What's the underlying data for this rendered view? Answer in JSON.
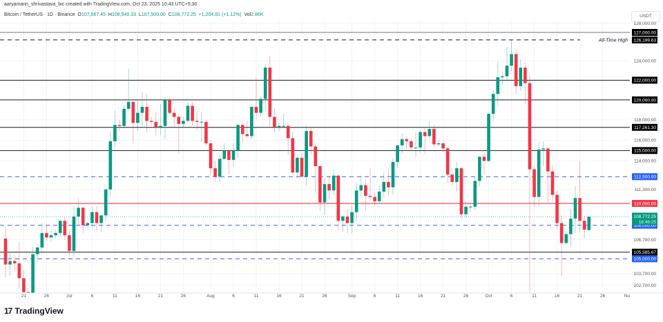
{
  "credit": "aaryamann_shrivastava_bic created with TradingView.com, Oct 23, 2025 10:43 UTC+5:30",
  "legend": {
    "symbol": "Bitcoin / TetherUS · 1D · Binance",
    "open_label": "O",
    "open": "107,567.45",
    "high_label": "H",
    "high": "108,940.33",
    "low_label": "L",
    "low": "107,500.00",
    "close_label": "C",
    "close": "108,772.25",
    "change": "+1,204.81 (+1.12%)",
    "vol_label": "Vol",
    "vol": "2.86K"
  },
  "currency": "USDT",
  "footer": {
    "brand": "TradingView",
    "logo_text": "17"
  },
  "colors": {
    "up": "#089981",
    "down": "#f23645",
    "blue_level": "#2962ff",
    "red_level": "#f23645",
    "black_level": "#131722"
  },
  "chart_data": {
    "type": "candlestick",
    "scale": "log",
    "ylim": [
      102000,
      128300
    ],
    "start_date": "2025-06-17",
    "ohlc": [
      [
        106800,
        107800,
        103400,
        104500
      ],
      [
        104500,
        105500,
        103500,
        104800
      ],
      [
        104800,
        105300,
        103900,
        104600
      ],
      [
        104600,
        106500,
        102400,
        103300
      ],
      [
        103300,
        104000,
        101000,
        102100
      ],
      [
        102100,
        102500,
        98200,
        100900
      ],
      [
        100900,
        106100,
        99700,
        105400
      ],
      [
        105400,
        106300,
        104700,
        106000
      ],
      [
        106000,
        108200,
        105500,
        107300
      ],
      [
        107300,
        108000,
        106600,
        106900
      ],
      [
        106900,
        107500,
        106500,
        107100
      ],
      [
        107100,
        107600,
        106800,
        107300
      ],
      [
        107300,
        108500,
        107000,
        108400
      ],
      [
        108400,
        108800,
        106700,
        107100
      ],
      [
        107100,
        107500,
        105300,
        105700
      ],
      [
        105700,
        109800,
        105200,
        108800
      ],
      [
        108800,
        110500,
        108100,
        109600
      ],
      [
        109600,
        109700,
        107300,
        108000
      ],
      [
        108000,
        108400,
        107800,
        108200
      ],
      [
        108200,
        109700,
        107800,
        109200
      ],
      [
        109200,
        109700,
        107500,
        108200
      ],
      [
        108200,
        109000,
        107400,
        108900
      ],
      [
        108900,
        111500,
        108400,
        111300
      ],
      [
        111300,
        116800,
        110600,
        115900
      ],
      [
        115900,
        118900,
        115300,
        117500
      ],
      [
        117500,
        118000,
        116900,
        117400
      ],
      [
        117400,
        119500,
        117300,
        119100
      ],
      [
        119100,
        123200,
        118900,
        119800
      ],
      [
        119800,
        119900,
        115700,
        117700
      ],
      [
        117700,
        120000,
        116900,
        118700
      ],
      [
        118700,
        120800,
        117400,
        119300
      ],
      [
        119300,
        120600,
        116800,
        117900
      ],
      [
        117900,
        118300,
        117400,
        117800
      ],
      [
        117800,
        118800,
        116500,
        117300
      ],
      [
        117300,
        119600,
        116500,
        117400
      ],
      [
        117400,
        120200,
        116100,
        120000
      ],
      [
        120000,
        120200,
        118500,
        118700
      ],
      [
        118700,
        119200,
        117200,
        118300
      ],
      [
        118300,
        118500,
        114700,
        117600
      ],
      [
        117600,
        118300,
        117200,
        117900
      ],
      [
        117900,
        119800,
        117800,
        119400
      ],
      [
        119400,
        119800,
        117400,
        117900
      ],
      [
        117900,
        118900,
        116900,
        117800
      ],
      [
        117800,
        118800,
        115800,
        117800
      ],
      [
        117800,
        118000,
        115500,
        115700
      ],
      [
        115700,
        116000,
        112700,
        113300
      ],
      [
        113300,
        114000,
        112000,
        112500
      ],
      [
        112500,
        114700,
        112000,
        114200
      ],
      [
        114200,
        115700,
        114100,
        115000
      ],
      [
        115000,
        115100,
        112700,
        114100
      ],
      [
        114100,
        115700,
        113400,
        115000
      ],
      [
        115000,
        117600,
        114300,
        117500
      ],
      [
        117500,
        117700,
        115900,
        116600
      ],
      [
        116600,
        117900,
        116300,
        116400
      ],
      [
        116400,
        119300,
        116100,
        119300
      ],
      [
        119300,
        122300,
        118100,
        118700
      ],
      [
        118700,
        120300,
        118300,
        120100
      ],
      [
        120100,
        123700,
        118900,
        123300
      ],
      [
        123300,
        124500,
        117200,
        118300
      ],
      [
        118300,
        119200,
        116800,
        117300
      ],
      [
        117300,
        117700,
        116900,
        117400
      ],
      [
        117400,
        118600,
        117200,
        117400
      ],
      [
        117400,
        117600,
        114600,
        116200
      ],
      [
        116200,
        116800,
        112700,
        112900
      ],
      [
        112900,
        114600,
        112400,
        114300
      ],
      [
        114300,
        114800,
        112400,
        112500
      ],
      [
        112500,
        117400,
        111700,
        116900
      ],
      [
        116900,
        117200,
        114600,
        115400
      ],
      [
        115400,
        115600,
        111000,
        113500
      ],
      [
        113500,
        113600,
        109300,
        110100
      ],
      [
        110100,
        112400,
        109000,
        111800
      ],
      [
        111800,
        112600,
        110400,
        111200
      ],
      [
        111200,
        113200,
        110800,
        112600
      ],
      [
        112600,
        112700,
        107500,
        108400
      ],
      [
        108400,
        108900,
        107400,
        108800
      ],
      [
        108800,
        109500,
        107300,
        108200
      ],
      [
        108200,
        109900,
        107300,
        109200
      ],
      [
        109200,
        111800,
        108400,
        111200
      ],
      [
        111200,
        112600,
        110600,
        111700
      ],
      [
        111700,
        112200,
        109300,
        110700
      ],
      [
        110700,
        113300,
        110200,
        110600
      ],
      [
        110600,
        111000,
        109800,
        110200
      ],
      [
        110200,
        111600,
        110000,
        111100
      ],
      [
        111100,
        112900,
        110500,
        112000
      ],
      [
        112000,
        113200,
        110700,
        111500
      ],
      [
        111500,
        114300,
        110800,
        113900
      ],
      [
        113900,
        115500,
        113300,
        115500
      ],
      [
        115500,
        116700,
        114700,
        116100
      ],
      [
        116100,
        116300,
        115200,
        115900
      ],
      [
        115900,
        116100,
        115100,
        115300
      ],
      [
        115300,
        116800,
        114400,
        115300
      ],
      [
        115300,
        117000,
        114800,
        116800
      ],
      [
        116800,
        117200,
        114700,
        116400
      ],
      [
        116400,
        117900,
        116100,
        117100
      ],
      [
        117100,
        117500,
        115300,
        115600
      ],
      [
        115600,
        116100,
        115400,
        115700
      ],
      [
        115700,
        115800,
        114900,
        115200
      ],
      [
        115200,
        115400,
        111900,
        112700
      ],
      [
        112700,
        113300,
        111700,
        112000
      ],
      [
        112000,
        113900,
        111100,
        113300
      ],
      [
        113300,
        113500,
        108600,
        109000
      ],
      [
        109000,
        110200,
        108700,
        109700
      ],
      [
        109700,
        110000,
        109200,
        109700
      ],
      [
        109700,
        112500,
        109400,
        112100
      ],
      [
        112100,
        114500,
        111600,
        114400
      ],
      [
        114400,
        114800,
        112700,
        114000
      ],
      [
        114000,
        118700,
        113900,
        118600
      ],
      [
        118600,
        121000,
        117900,
        120600
      ],
      [
        120600,
        123900,
        119400,
        122300
      ],
      [
        122300,
        122900,
        121500,
        122400
      ],
      [
        122400,
        125500,
        122000,
        123500
      ],
      [
        123500,
        126200,
        122900,
        124700
      ],
      [
        124700,
        125100,
        120600,
        121400
      ],
      [
        121400,
        124200,
        120900,
        123300
      ],
      [
        123300,
        123800,
        119600,
        121700
      ],
      [
        121700,
        122500,
        102000,
        113200
      ],
      [
        113200,
        113500,
        109700,
        110600
      ],
      [
        110600,
        115800,
        109700,
        115100
      ],
      [
        115100,
        115900,
        113500,
        115200
      ],
      [
        115200,
        115300,
        110100,
        113000
      ],
      [
        113000,
        113600,
        110200,
        110800
      ],
      [
        110800,
        111200,
        107700,
        108200
      ],
      [
        108200,
        108900,
        103500,
        106400
      ],
      [
        106400,
        107500,
        106200,
        107200
      ],
      [
        107200,
        109500,
        106100,
        108600
      ],
      [
        108600,
        111600,
        107300,
        110500
      ],
      [
        110500,
        114000,
        107400,
        108400
      ],
      [
        108400,
        108900,
        106800,
        107600
      ],
      [
        107567,
        108940,
        107500,
        108772
      ]
    ],
    "levels": [
      {
        "price": 127000,
        "label": "127,000.00",
        "style": "solid",
        "color": "#131722"
      },
      {
        "price": 126199.63,
        "label": "126,199.63",
        "style": "dashed",
        "color": "#131722",
        "note": "All-Time High"
      },
      {
        "price": 122000,
        "label": "122,000.00",
        "style": "solid",
        "color": "#131722"
      },
      {
        "price": 120000,
        "label": "120,000.00",
        "style": "solid",
        "color": "#131722"
      },
      {
        "price": 117261.3,
        "label": "117,261.30",
        "style": "solid",
        "color": "#131722"
      },
      {
        "price": 115000,
        "label": "115,000.00",
        "style": "solid",
        "color": "#131722"
      },
      {
        "price": 112500,
        "label": "112,500.00",
        "style": "dashed",
        "color": "#2962ff"
      },
      {
        "price": 110000,
        "label": "110,000.00",
        "style": "solid",
        "color": "#f23645"
      },
      {
        "price": 108000,
        "label": "108,000.00",
        "style": "dashed",
        "color": "#2962ff"
      },
      {
        "price": 105585.67,
        "label": "105,585.67",
        "style": "solid",
        "color": "#131722"
      },
      {
        "price": 105000,
        "label": "105,000.00",
        "style": "dashed",
        "color": "#2962ff"
      }
    ],
    "price_ticks": [
      {
        "price": 128000,
        "label": "128,000.00"
      },
      {
        "price": 124000,
        "label": "124,000.00"
      },
      {
        "price": 118000,
        "label": "118,000.00"
      },
      {
        "price": 116000,
        "label": "116,000.00"
      },
      {
        "price": 114000,
        "label": "114,000.00"
      },
      {
        "price": 111300,
        "label": "111,300.00"
      },
      {
        "price": 106700,
        "label": "106,700.00"
      },
      {
        "price": 103700,
        "label": "103,700.00"
      },
      {
        "price": 102700,
        "label": "102,700.00"
      }
    ],
    "last_price": {
      "price": 108772.25,
      "label": "108,772.25",
      "countdown": "18:46:25"
    },
    "time_ticks": [
      {
        "day": 4,
        "label": "21"
      },
      {
        "day": 9,
        "label": "26"
      },
      {
        "day": 14,
        "label": "Jul"
      },
      {
        "day": 19,
        "label": "6"
      },
      {
        "day": 24,
        "label": "11"
      },
      {
        "day": 29,
        "label": "16"
      },
      {
        "day": 34,
        "label": "21"
      },
      {
        "day": 39,
        "label": "26"
      },
      {
        "day": 45,
        "label": "Aug"
      },
      {
        "day": 50,
        "label": "6"
      },
      {
        "day": 55,
        "label": "11"
      },
      {
        "day": 60,
        "label": "16"
      },
      {
        "day": 65,
        "label": "21"
      },
      {
        "day": 70,
        "label": "26"
      },
      {
        "day": 76,
        "label": "Sep"
      },
      {
        "day": 81,
        "label": "6"
      },
      {
        "day": 86,
        "label": "11"
      },
      {
        "day": 91,
        "label": "16"
      },
      {
        "day": 96,
        "label": "21"
      },
      {
        "day": 101,
        "label": "26"
      },
      {
        "day": 106,
        "label": "Oct"
      },
      {
        "day": 111,
        "label": "6"
      },
      {
        "day": 116,
        "label": "11"
      },
      {
        "day": 121,
        "label": "16"
      },
      {
        "day": 126,
        "label": "21"
      },
      {
        "day": 131,
        "label": "26"
      },
      {
        "day": 137,
        "label": "No"
      }
    ]
  }
}
